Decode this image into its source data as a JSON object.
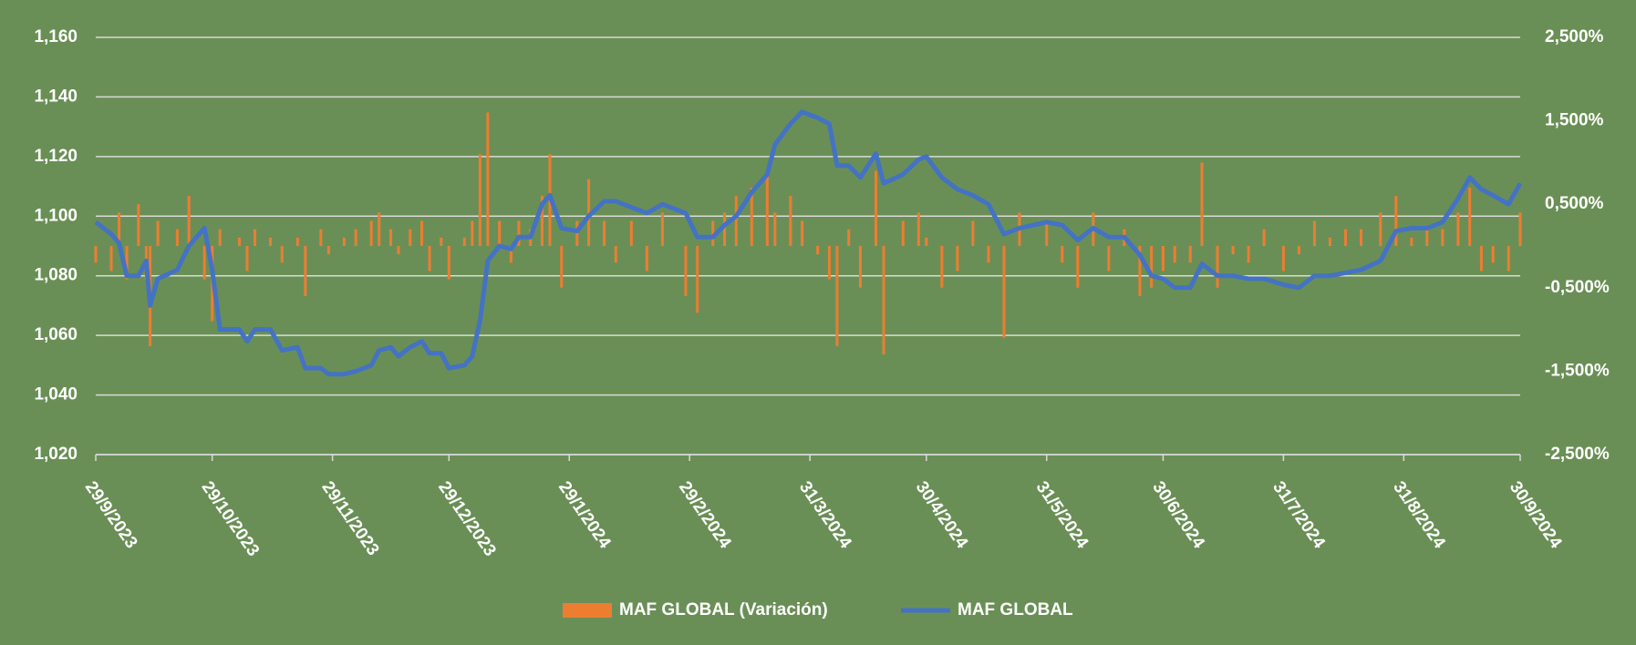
{
  "chart_data": {
    "type": "combo",
    "x": [
      "2023-09-29",
      "2023-10-03",
      "2023-10-05",
      "2023-10-07",
      "2023-10-10",
      "2023-10-12",
      "2023-10-13",
      "2023-10-15",
      "2023-10-20",
      "2023-10-23",
      "2023-10-27",
      "2023-10-29",
      "2023-10-31",
      "2023-11-05",
      "2023-11-07",
      "2023-11-09",
      "2023-11-13",
      "2023-11-16",
      "2023-11-20",
      "2023-11-22",
      "2023-11-26",
      "2023-11-28",
      "2023-12-02",
      "2023-12-05",
      "2023-12-09",
      "2023-12-11",
      "2023-12-14",
      "2023-12-16",
      "2023-12-19",
      "2023-12-22",
      "2023-12-24",
      "2023-12-27",
      "2023-12-29",
      "2024-01-02",
      "2024-01-04",
      "2024-01-06",
      "2024-01-08",
      "2024-01-11",
      "2024-01-14",
      "2024-01-16",
      "2024-01-19",
      "2024-01-22",
      "2024-01-24",
      "2024-01-27",
      "2024-01-31",
      "2024-02-03",
      "2024-02-07",
      "2024-02-10",
      "2024-02-14",
      "2024-02-18",
      "2024-02-22",
      "2024-02-28",
      "2024-03-02",
      "2024-03-06",
      "2024-03-09",
      "2024-03-12",
      "2024-03-16",
      "2024-03-20",
      "2024-03-22",
      "2024-03-26",
      "2024-03-29",
      "2024-04-02",
      "2024-04-05",
      "2024-04-07",
      "2024-04-10",
      "2024-04-13",
      "2024-04-17",
      "2024-04-19",
      "2024-04-24",
      "2024-04-28",
      "2024-04-30",
      "2024-05-04",
      "2024-05-08",
      "2024-05-12",
      "2024-05-16",
      "2024-05-20",
      "2024-05-24",
      "2024-05-31",
      "2024-06-04",
      "2024-06-08",
      "2024-06-12",
      "2024-06-16",
      "2024-06-20",
      "2024-06-24",
      "2024-06-27",
      "2024-06-30",
      "2024-07-03",
      "2024-07-07",
      "2024-07-10",
      "2024-07-14",
      "2024-07-18",
      "2024-07-22",
      "2024-07-26",
      "2024-07-31",
      "2024-08-04",
      "2024-08-08",
      "2024-08-12",
      "2024-08-16",
      "2024-08-20",
      "2024-08-25",
      "2024-08-29",
      "2024-09-02",
      "2024-09-06",
      "2024-09-10",
      "2024-09-14",
      "2024-09-17",
      "2024-09-20",
      "2024-09-23",
      "2024-09-27",
      "2024-09-30"
    ],
    "series": [
      {
        "name": "MAF GLOBAL (Variación)",
        "type": "bar",
        "axis": "y2",
        "color": "#ed7d31",
        "values": [
          -0.2,
          -0.3,
          0.4,
          -0.4,
          0.5,
          -0.4,
          -1.2,
          0.3,
          0.2,
          0.6,
          -0.4,
          -0.9,
          0.2,
          0.1,
          -0.3,
          0.2,
          0.1,
          -0.2,
          0.1,
          -0.6,
          0.2,
          -0.1,
          0.1,
          0.2,
          0.3,
          0.4,
          0.2,
          -0.1,
          0.2,
          0.3,
          -0.3,
          0.1,
          -0.4,
          0.1,
          0.3,
          1.1,
          1.6,
          0.3,
          -0.2,
          0.3,
          0.2,
          0.6,
          1.1,
          -0.5,
          0.3,
          0.8,
          0.3,
          -0.2,
          0.3,
          -0.3,
          0.4,
          -0.6,
          -0.8,
          0.3,
          0.4,
          0.6,
          0.7,
          0.9,
          0.4,
          0.6,
          0.3,
          -0.1,
          -0.4,
          -1.2,
          0.2,
          -0.5,
          0.9,
          -1.3,
          0.3,
          0.4,
          0.1,
          -0.5,
          -0.3,
          0.3,
          -0.2,
          -1.1,
          0.4,
          0.3,
          -0.2,
          -0.5,
          0.4,
          -0.3,
          0.2,
          -0.6,
          -0.5,
          -0.3,
          -0.2,
          -0.2,
          1.0,
          -0.5,
          -0.1,
          -0.2,
          0.2,
          -0.3,
          -0.1,
          0.3,
          0.1,
          0.2,
          0.2,
          0.4,
          0.6,
          0.1,
          0.2,
          0.2,
          0.4,
          0.7,
          -0.3,
          -0.2,
          -0.3,
          0.4
        ]
      },
      {
        "name": "MAF GLOBAL",
        "type": "line",
        "color": "#4472c4",
        "values": [
          1.098,
          1.094,
          1.091,
          1.08,
          1.08,
          1.085,
          1.07,
          1.079,
          1.082,
          1.09,
          1.096,
          1.082,
          1.062,
          1.062,
          1.058,
          1.062,
          1.062,
          1.055,
          1.056,
          1.049,
          1.049,
          1.047,
          1.047,
          1.048,
          1.05,
          1.055,
          1.056,
          1.053,
          1.056,
          1.058,
          1.054,
          1.054,
          1.049,
          1.05,
          1.053,
          1.065,
          1.085,
          1.09,
          1.089,
          1.093,
          1.093,
          1.104,
          1.107,
          1.096,
          1.095,
          1.1,
          1.105,
          1.105,
          1.103,
          1.101,
          1.104,
          1.101,
          1.093,
          1.093,
          1.097,
          1.1,
          1.108,
          1.114,
          1.124,
          1.131,
          1.135,
          1.133,
          1.131,
          1.117,
          1.117,
          1.113,
          1.121,
          1.111,
          1.114,
          1.119,
          1.12,
          1.113,
          1.109,
          1.107,
          1.104,
          1.094,
          1.096,
          1.098,
          1.097,
          1.092,
          1.096,
          1.093,
          1.093,
          1.087,
          1.08,
          1.079,
          1.076,
          1.076,
          1.084,
          1.08,
          1.08,
          1.079,
          1.079,
          1.077,
          1.076,
          1.08,
          1.08,
          1.081,
          1.082,
          1.085,
          1.095,
          1.096,
          1.096,
          1.098,
          1.106,
          1.113,
          1.109,
          1.107,
          1.104,
          1.111
        ]
      }
    ],
    "xlim": [
      "2023-09-29",
      "2024-09-30"
    ],
    "xticks": [
      {
        "value": "2023-09-29",
        "label": "29/9/2023"
      },
      {
        "value": "2023-10-29",
        "label": "29/10/2023"
      },
      {
        "value": "2023-11-29",
        "label": "29/11/2023"
      },
      {
        "value": "2023-12-29",
        "label": "29/12/2023"
      },
      {
        "value": "2024-01-29",
        "label": "29/1/2024"
      },
      {
        "value": "2024-02-29",
        "label": "29/2/2024"
      },
      {
        "value": "2024-03-31",
        "label": "31/3/2024"
      },
      {
        "value": "2024-04-30",
        "label": "30/4/2024"
      },
      {
        "value": "2024-05-31",
        "label": "31/5/2024"
      },
      {
        "value": "2024-06-30",
        "label": "30/6/2024"
      },
      {
        "value": "2024-07-31",
        "label": "31/7/2024"
      },
      {
        "value": "2024-08-31",
        "label": "31/8/2024"
      },
      {
        "value": "2024-09-30",
        "label": "30/9/2024"
      }
    ],
    "ylim": [
      1.02,
      1.16
    ],
    "yticks": [
      {
        "value": 1.02,
        "label": "1,020"
      },
      {
        "value": 1.04,
        "label": "1,040"
      },
      {
        "value": 1.06,
        "label": "1,060"
      },
      {
        "value": 1.08,
        "label": "1,080"
      },
      {
        "value": 1.1,
        "label": "1,100"
      },
      {
        "value": 1.12,
        "label": "1,120"
      },
      {
        "value": 1.14,
        "label": "1,140"
      },
      {
        "value": 1.16,
        "label": "1,160"
      }
    ],
    "y2lim": [
      -2.5,
      2.5
    ],
    "y2ticks": [
      {
        "value": 2.5,
        "label": "2,500%"
      },
      {
        "value": 1.5,
        "label": "1,500%"
      },
      {
        "value": 0.5,
        "label": "0,500%"
      },
      {
        "value": -0.5,
        "label": "-0,500%"
      },
      {
        "value": -1.5,
        "label": "-1,500%"
      },
      {
        "value": -2.5,
        "label": "-2,500%"
      }
    ],
    "grid": true,
    "legend": "bottom"
  }
}
